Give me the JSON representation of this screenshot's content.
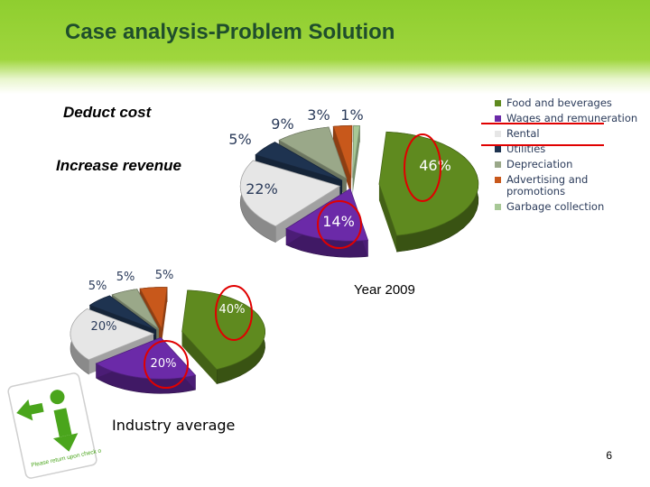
{
  "slide": {
    "title": "Case analysis-Problem Solution",
    "note_cost": "Deduct cost",
    "note_revenue": "Increase revenue",
    "caption_year": "Year 2009",
    "caption_industry": "Industry average",
    "page_number": "6",
    "icon_text": "Please return upon check out"
  },
  "legend": [
    {
      "label": "Food and beverages",
      "color": "#5f8a1f"
    },
    {
      "label": "Wages and remuneration",
      "color": "#6b2aa8"
    },
    {
      "label": "Rental",
      "color": "#e6e6e6"
    },
    {
      "label": "Utilities",
      "color": "#1e3350"
    },
    {
      "label": "Depreciation",
      "color": "#9aa889"
    },
    {
      "label": "Advertising and promotions",
      "color": "#c8581b"
    },
    {
      "label": "Garbage collection",
      "color": "#a7c896"
    }
  ],
  "chart_data": [
    {
      "type": "pie",
      "title": "Year 2009",
      "categories": [
        "Food and beverages",
        "Wages and remuneration",
        "Rental",
        "Utilities",
        "Depreciation",
        "Advertising and promotions",
        "Garbage collection"
      ],
      "values": [
        46,
        14,
        22,
        5,
        9,
        3,
        1
      ],
      "labels": [
        "46%",
        "14%",
        "22%",
        "5%",
        "9%",
        "3%",
        "1%"
      ],
      "highlighted": [
        "Food and beverages",
        "Wages and remuneration"
      ]
    },
    {
      "type": "pie",
      "title": "Industry average",
      "categories": [
        "Food and beverages",
        "Wages and remuneration",
        "Rental",
        "Utilities",
        "Depreciation",
        "Advertising and promotions"
      ],
      "values": [
        40,
        20,
        20,
        5,
        5,
        5
      ],
      "labels": [
        "40%",
        "20%",
        "20%",
        "5%",
        "5%",
        "5%"
      ],
      "highlighted": [
        "Food and beverages",
        "Wages and remuneration"
      ]
    }
  ]
}
